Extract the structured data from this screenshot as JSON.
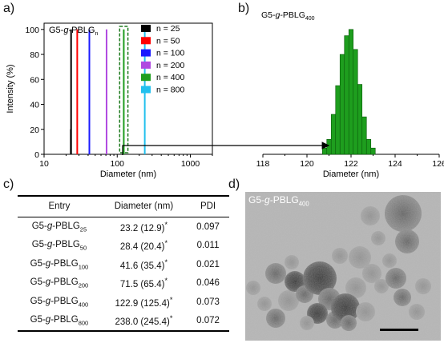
{
  "panels": {
    "a": "a)",
    "b": "b)",
    "c": "c)",
    "d": "d)"
  },
  "chart_data": [
    {
      "type": "bar",
      "panel": "a",
      "annotation": {
        "prefix": "G5-",
        "italic": "g",
        "suffix": "-PBLG",
        "sub": "n"
      },
      "xlabel": "Diameter (nm)",
      "ylabel": "Intensity (%)",
      "xscale": "log",
      "xlim": [
        10,
        2000
      ],
      "ylim": [
        0,
        105
      ],
      "xticks": [
        10,
        100,
        1000
      ],
      "yticks": [
        0,
        20,
        40,
        60,
        80,
        100
      ],
      "legend_placement": "top-right",
      "series": [
        {
          "name": "n = 25",
          "color": "#000000",
          "x": [
            23.2,
            23.4
          ],
          "values": [
            20,
            100
          ]
        },
        {
          "name": "n = 50",
          "color": "#ff0000",
          "x": [
            28.4
          ],
          "values": [
            100
          ]
        },
        {
          "name": "n = 100",
          "color": "#1a1aff",
          "x": [
            41.6
          ],
          "values": [
            100
          ]
        },
        {
          "name": "n = 200",
          "color": "#b04ae0",
          "x": [
            71.5
          ],
          "values": [
            100
          ]
        },
        {
          "name": "n = 400",
          "color": "#1e9e1e",
          "x": [
            122.9
          ],
          "values": [
            100
          ]
        },
        {
          "name": "n = 800",
          "color": "#22c0ee",
          "x": [
            238.0
          ],
          "values": [
            100
          ]
        }
      ]
    },
    {
      "type": "bar",
      "panel": "b",
      "annotation": {
        "prefix": "G5-",
        "italic": "g",
        "suffix": "-PBLG",
        "sub": "400"
      },
      "xlabel": "Diameter (nm)",
      "xlim": [
        118,
        126
      ],
      "xticks": [
        118,
        120,
        122,
        124,
        126
      ],
      "ylim": [
        0,
        105
      ],
      "color": "#1e9e1e",
      "x": [
        120.8,
        121.0,
        121.2,
        121.4,
        121.6,
        121.8,
        122.0,
        122.2,
        122.4,
        122.6,
        122.8,
        123.0
      ],
      "values": [
        5,
        12,
        32,
        55,
        80,
        95,
        100,
        84,
        56,
        30,
        12,
        5
      ]
    }
  ],
  "table": {
    "headers": [
      "Entry",
      "Diameter (nm)",
      "PDI"
    ],
    "rows": [
      {
        "entry": {
          "prefix": "G5-",
          "italic": "g",
          "suffix": "-PBLG",
          "sub": "25"
        },
        "diameter": "23.2 (12.9)",
        "star": "*",
        "pdi": "0.097"
      },
      {
        "entry": {
          "prefix": "G5-",
          "italic": "g",
          "suffix": "-PBLG",
          "sub": "50"
        },
        "diameter": "28.4 (20.4)",
        "star": "*",
        "pdi": "0.011"
      },
      {
        "entry": {
          "prefix": "G5-",
          "italic": "g",
          "suffix": "-PBLG",
          "sub": "100"
        },
        "diameter": "41.6 (35.4)",
        "star": "*",
        "pdi": "0.021"
      },
      {
        "entry": {
          "prefix": "G5-",
          "italic": "g",
          "suffix": "-PBLG",
          "sub": "200"
        },
        "diameter": "71.5 (65.4)",
        "star": "*",
        "pdi": "0.046"
      },
      {
        "entry": {
          "prefix": "G5-",
          "italic": "g",
          "suffix": "-PBLG",
          "sub": "400"
        },
        "diameter": "122.9 (125.4)",
        "star": "*",
        "pdi": "0.073"
      },
      {
        "entry": {
          "prefix": "G5-",
          "italic": "g",
          "suffix": "-PBLG",
          "sub": "800"
        },
        "diameter": "238.0 (245.4)",
        "star": "*",
        "pdi": "0.072"
      }
    ]
  },
  "tem": {
    "label": {
      "prefix": "G5-",
      "italic": "g",
      "suffix": "-PBLG",
      "sub": "400"
    }
  }
}
